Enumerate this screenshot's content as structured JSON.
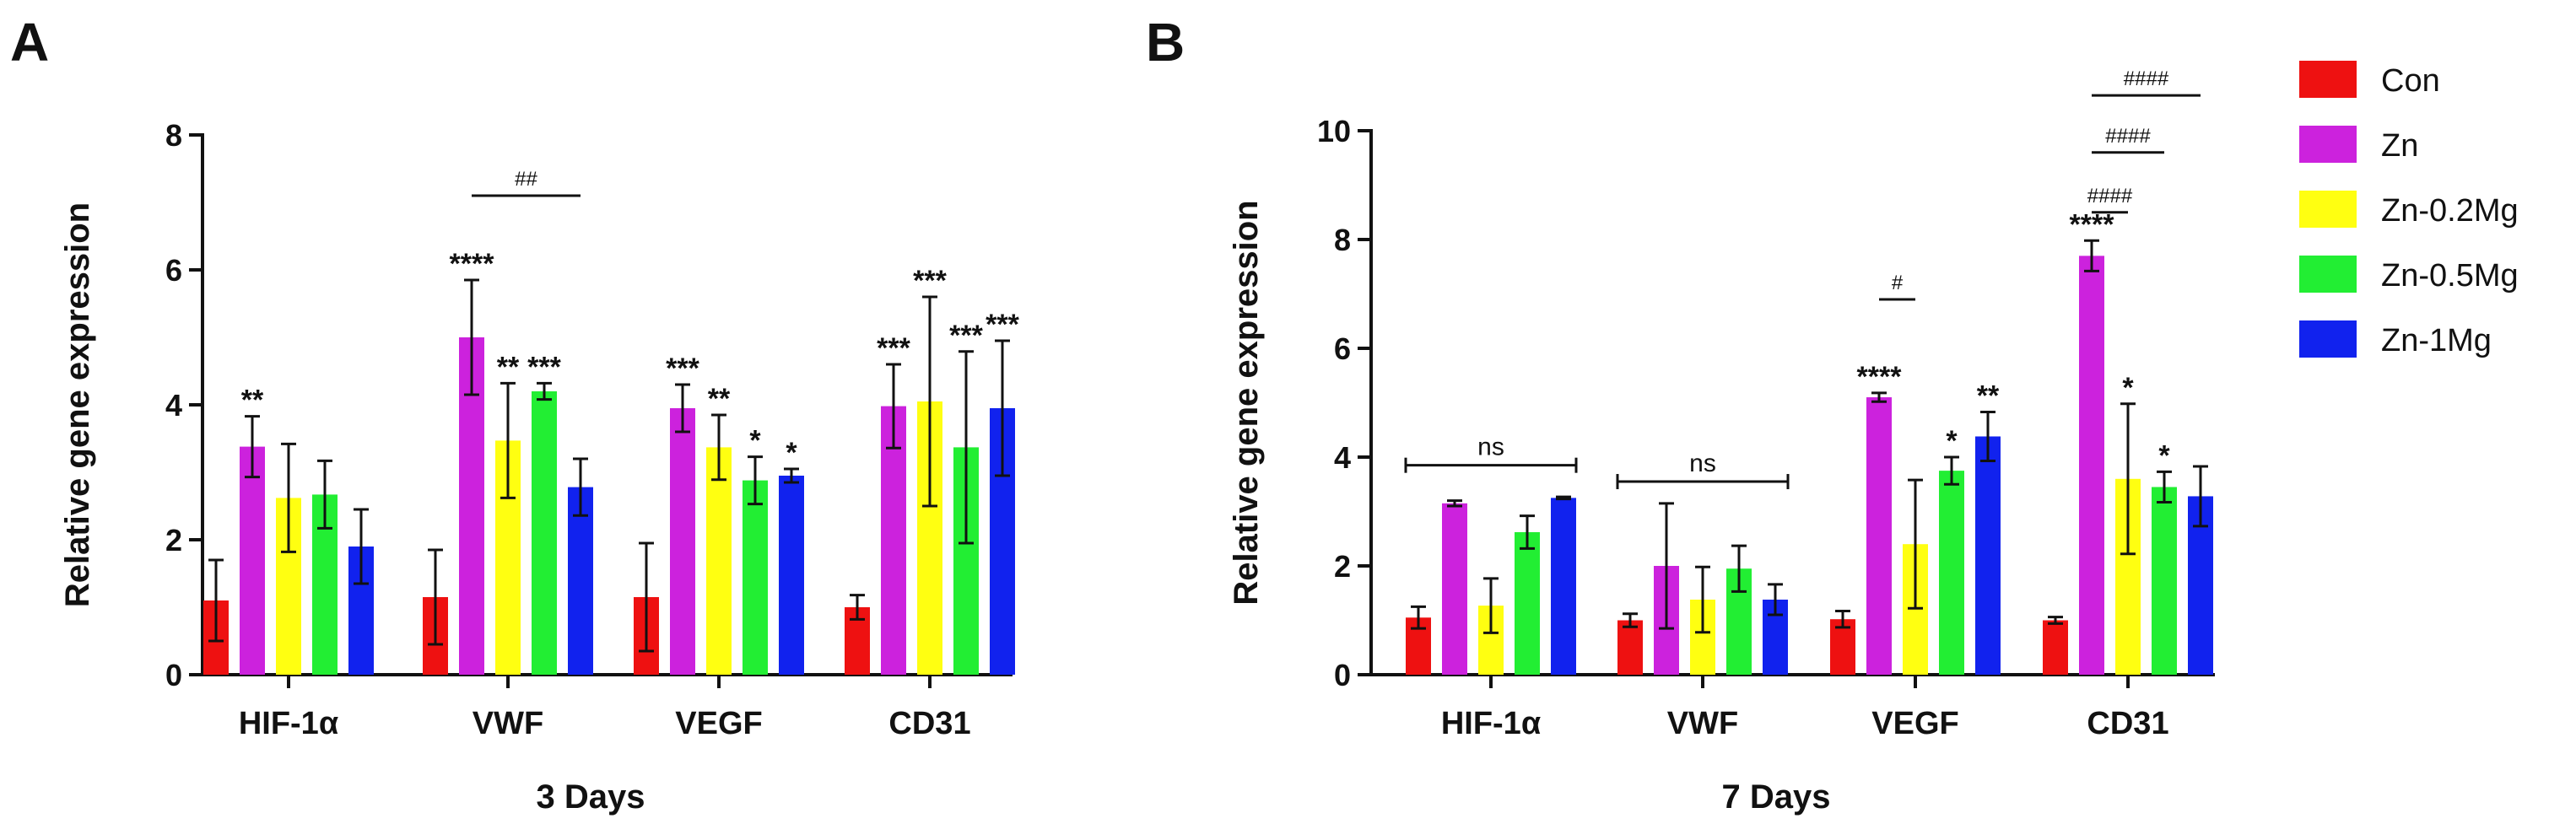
{
  "figure": {
    "legend": {
      "position": "right",
      "entries": [
        {
          "name": "Con",
          "color": "#ee1111"
        },
        {
          "name": "Zn",
          "color": "#cc22dd"
        },
        {
          "name": "Zn-0.2Mg",
          "color": "#ffff11"
        },
        {
          "name": "Zn-0.5Mg",
          "color": "#22ee33"
        },
        {
          "name": "Zn-1Mg",
          "color": "#1122ee"
        }
      ]
    }
  },
  "chart_data": [
    {
      "panel": "A",
      "type": "bar",
      "title": "",
      "xlabel": "3 Days",
      "ylabel": "Relative gene expression",
      "ylim": [
        0,
        8
      ],
      "yticks": [
        0,
        2,
        4,
        6,
        8
      ],
      "categories": [
        "HIF-1α",
        "VWF",
        "VEGF",
        "CD31"
      ],
      "series": [
        {
          "name": "Con",
          "values": [
            1.1,
            1.15,
            1.15,
            1.0
          ],
          "errors": [
            0.6,
            0.7,
            0.8,
            0.18
          ]
        },
        {
          "name": "Zn",
          "values": [
            3.38,
            5.0,
            3.95,
            3.98
          ],
          "errors": [
            0.45,
            0.85,
            0.35,
            0.62
          ]
        },
        {
          "name": "Zn-0.2Mg",
          "values": [
            2.62,
            3.47,
            3.37,
            4.05
          ],
          "errors": [
            0.8,
            0.85,
            0.48,
            1.55
          ]
        },
        {
          "name": "Zn-0.5Mg",
          "values": [
            2.67,
            4.2,
            2.88,
            3.37
          ],
          "errors": [
            0.5,
            0.12,
            0.35,
            1.42
          ]
        },
        {
          "name": "Zn-1Mg",
          "values": [
            1.9,
            2.78,
            2.95,
            3.95
          ],
          "errors": [
            0.55,
            0.42,
            0.1,
            1.0
          ]
        }
      ],
      "significance": [
        {
          "category": 0,
          "series": 1,
          "label": "**"
        },
        {
          "category": 1,
          "series": 1,
          "label": "****"
        },
        {
          "category": 1,
          "series": 2,
          "label": "**"
        },
        {
          "category": 1,
          "series": 3,
          "label": "***"
        },
        {
          "category": 2,
          "series": 1,
          "label": "***"
        },
        {
          "category": 2,
          "series": 2,
          "label": "**"
        },
        {
          "category": 2,
          "series": 3,
          "label": "*"
        },
        {
          "category": 2,
          "series": 4,
          "label": "*"
        },
        {
          "category": 3,
          "series": 1,
          "label": "***"
        },
        {
          "category": 3,
          "series": 2,
          "label": "***"
        },
        {
          "category": 3,
          "series": 3,
          "label": "***"
        },
        {
          "category": 3,
          "series": 4,
          "label": "***"
        }
      ],
      "comparisons": [
        {
          "label": "##",
          "category": 1,
          "from_series": 1,
          "to_series": 4,
          "level": 7.1
        }
      ]
    },
    {
      "panel": "B",
      "type": "bar",
      "title": "",
      "xlabel": "7 Days",
      "ylabel": "Relative gene expression",
      "ylim": [
        0,
        10
      ],
      "yticks": [
        0,
        2,
        4,
        6,
        8,
        10
      ],
      "categories": [
        "HIF-1α",
        "VWF",
        "VEGF",
        "CD31"
      ],
      "series": [
        {
          "name": "Con",
          "values": [
            1.05,
            1.0,
            1.02,
            1.0
          ],
          "errors": [
            0.2,
            0.12,
            0.15,
            0.06
          ]
        },
        {
          "name": "Zn",
          "values": [
            3.15,
            2.0,
            5.1,
            7.7
          ],
          "errors": [
            0.05,
            1.15,
            0.08,
            0.28
          ]
        },
        {
          "name": "Zn-0.2Mg",
          "values": [
            1.27,
            1.38,
            2.4,
            3.6
          ],
          "errors": [
            0.5,
            0.6,
            1.18,
            1.38
          ]
        },
        {
          "name": "Zn-0.5Mg",
          "values": [
            2.62,
            1.95,
            3.75,
            3.45
          ],
          "errors": [
            0.3,
            0.42,
            0.25,
            0.28
          ]
        },
        {
          "name": "Zn-1Mg",
          "values": [
            3.25,
            1.38,
            4.38,
            3.28
          ],
          "errors": [
            0.02,
            0.28,
            0.45,
            0.55
          ]
        }
      ],
      "significance": [
        {
          "category": 2,
          "series": 1,
          "label": "****"
        },
        {
          "category": 2,
          "series": 3,
          "label": "*"
        },
        {
          "category": 2,
          "series": 4,
          "label": "**"
        },
        {
          "category": 3,
          "series": 1,
          "label": "****"
        },
        {
          "category": 3,
          "series": 2,
          "label": "*"
        },
        {
          "category": 3,
          "series": 3,
          "label": "*"
        }
      ],
      "comparisons": [
        {
          "label": "ns",
          "category": 0,
          "from_series": 0,
          "to_series": 4,
          "level": 3.85
        },
        {
          "label": "ns",
          "category": 1,
          "from_series": 0,
          "to_series": 4,
          "level": 3.55
        },
        {
          "label": "#",
          "category": 2,
          "from_series": 1,
          "to_series": 2,
          "level": 6.9
        },
        {
          "label": "####",
          "category": 3,
          "from_series": 1,
          "to_series": 2,
          "level": 8.5
        },
        {
          "label": "####",
          "category": 3,
          "from_series": 1,
          "to_series": 3,
          "level": 9.6
        },
        {
          "label": "####",
          "category": 3,
          "from_series": 1,
          "to_series": 4,
          "level": 10.65
        }
      ]
    }
  ]
}
